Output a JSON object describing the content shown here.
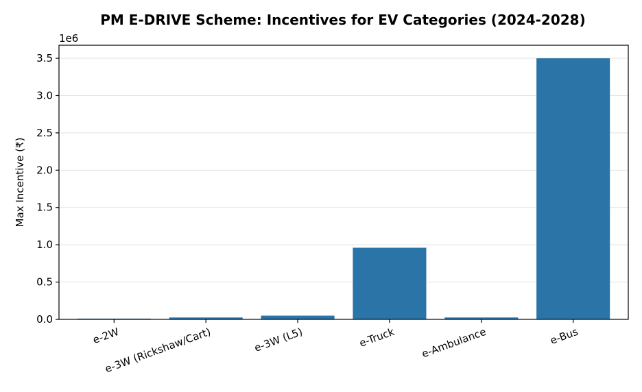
{
  "chart_data": {
    "type": "bar",
    "title": "PM E-DRIVE Scheme: Incentives for EV Categories (2024-2028)",
    "xlabel": "",
    "ylabel": "Max Incentive (₹)",
    "y_offset_label": "1e6",
    "categories": [
      "e-2W",
      "e-3W (Rickshaw/Cart)",
      "e-3W (L5)",
      "e-Truck",
      "e-Ambulance",
      "e-Bus"
    ],
    "values": [
      10000,
      25000,
      50000,
      960000,
      25000,
      3500000
    ],
    "ylim": [
      0,
      3675000
    ],
    "y_ticks": [
      0,
      500000,
      1000000,
      1500000,
      2000000,
      2500000,
      3000000,
      3500000
    ],
    "y_tick_labels": [
      "0.0",
      "0.5",
      "1.0",
      "1.5",
      "2.0",
      "2.5",
      "3.0",
      "3.5"
    ],
    "grid": "y",
    "bar_color": "#2a74a8"
  }
}
